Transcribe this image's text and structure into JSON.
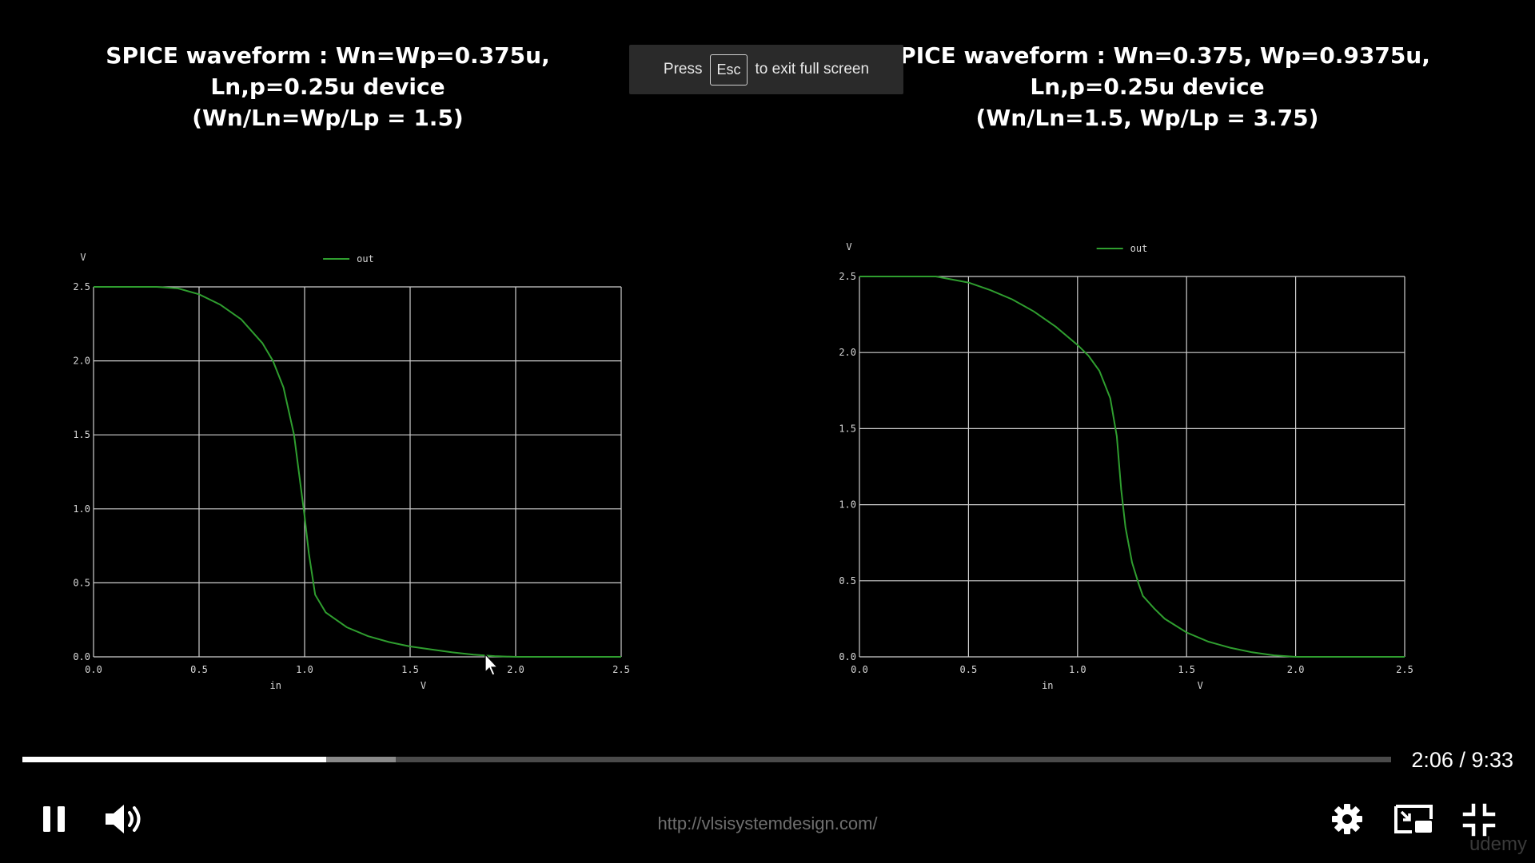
{
  "slide": {
    "title_left": [
      "SPICE waveform : Wn=Wp=0.375u,",
      "Ln,p=0.25u device",
      "(Wn/Ln=Wp/Lp = 1.5)"
    ],
    "title_right": [
      "SPICE waveform : Wn=0.375, Wp=0.9375u,",
      "Ln,p=0.25u device",
      "(Wn/Ln=1.5, Wp/Lp = 3.75)"
    ]
  },
  "fullscreen_banner": {
    "press": "Press",
    "key": "Esc",
    "rest": "to exit full screen"
  },
  "chart_data": [
    {
      "type": "line",
      "y_unit_label": "V",
      "xlabel": "in",
      "x_unit_label": "V",
      "xlim": [
        0,
        2.5
      ],
      "ylim": [
        0,
        2.5
      ],
      "x_ticks": [
        "0.0",
        "0.5",
        "1.0",
        "1.5",
        "2.0",
        "2.5"
      ],
      "y_ticks": [
        "0.0",
        "0.5",
        "1.0",
        "1.5",
        "2.0",
        "2.5"
      ],
      "grid": true,
      "legend": "top-center",
      "series": [
        {
          "name": "out",
          "color": "#2f9e2f",
          "x": [
            0,
            0.3,
            0.4,
            0.5,
            0.6,
            0.7,
            0.8,
            0.85,
            0.9,
            0.95,
            1.0,
            1.02,
            1.05,
            1.1,
            1.2,
            1.3,
            1.4,
            1.5,
            1.6,
            1.7,
            1.8,
            1.9,
            2.0,
            2.5
          ],
          "y": [
            2.5,
            2.5,
            2.49,
            2.45,
            2.38,
            2.28,
            2.12,
            2.0,
            1.82,
            1.5,
            0.95,
            0.7,
            0.42,
            0.3,
            0.2,
            0.14,
            0.1,
            0.07,
            0.05,
            0.03,
            0.015,
            0.005,
            0.0,
            0.0
          ]
        }
      ]
    },
    {
      "type": "line",
      "y_unit_label": "V",
      "xlabel": "in",
      "x_unit_label": "V",
      "xlim": [
        0,
        2.5
      ],
      "ylim": [
        0,
        2.5
      ],
      "x_ticks": [
        "0.0",
        "0.5",
        "1.0",
        "1.5",
        "2.0",
        "2.5"
      ],
      "y_ticks": [
        "0.0",
        "0.5",
        "1.0",
        "1.5",
        "2.0",
        "2.5"
      ],
      "grid": true,
      "legend": "top-center",
      "series": [
        {
          "name": "out",
          "color": "#2f9e2f",
          "x": [
            0,
            0.35,
            0.5,
            0.6,
            0.7,
            0.8,
            0.9,
            1.0,
            1.05,
            1.1,
            1.15,
            1.18,
            1.2,
            1.22,
            1.25,
            1.28,
            1.3,
            1.35,
            1.4,
            1.5,
            1.6,
            1.7,
            1.8,
            1.9,
            2.0,
            2.5
          ],
          "y": [
            2.5,
            2.5,
            2.46,
            2.41,
            2.35,
            2.27,
            2.17,
            2.05,
            1.98,
            1.88,
            1.7,
            1.45,
            1.1,
            0.85,
            0.62,
            0.48,
            0.4,
            0.32,
            0.25,
            0.16,
            0.1,
            0.06,
            0.03,
            0.01,
            0.0,
            0.0
          ]
        }
      ]
    }
  ],
  "player": {
    "progress_played": 0.222,
    "progress_buffered": 0.273,
    "time": "2:06 / 9:33",
    "url": "http://vlsisystemdesign.com/",
    "watermark": "udemy",
    "icons": [
      "pause-icon",
      "volume-icon",
      "settings-icon",
      "picture-in-picture-icon",
      "exit-fullscreen-icon"
    ]
  }
}
